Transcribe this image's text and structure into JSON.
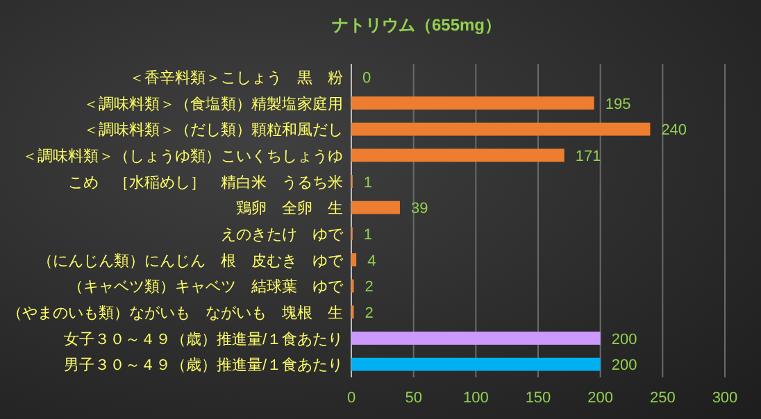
{
  "chart_data": {
    "type": "bar",
    "orientation": "horizontal",
    "title": "ナトリウム（655mg）",
    "categories": [
      "＜香辛料類＞こしょう　黒　粉",
      "＜調味料類＞（食塩類）精製塩家庭用",
      "＜調味料類＞（だし類）顆粒和風だし",
      "＜調味料類＞（しょうゆ類）こいくちしょうゆ",
      "こめ　［水稲めし］　精白米　うるち米",
      "鶏卵　全卵　生",
      "えのきたけ　ゆで",
      "（にんじん類）にんじん　根　皮むき　ゆで",
      "（キャベツ類）キャベツ　結球葉　ゆで",
      "（やまのいも類）ながいも　ながいも　塊根　生",
      "女子３０～４９（歳）推進量/１食あたり",
      "男子３０～４９（歳）推進量/１食あたり"
    ],
    "values": [
      0,
      195,
      240,
      171,
      1,
      39,
      1,
      4,
      2,
      2,
      200,
      200
    ],
    "colors": [
      "#ed7d31",
      "#ed7d31",
      "#ed7d31",
      "#ed7d31",
      "#ed7d31",
      "#ed7d31",
      "#ed7d31",
      "#ed7d31",
      "#ed7d31",
      "#ed7d31",
      "#cc99ff",
      "#00b0f0"
    ],
    "xlim": [
      0,
      300
    ],
    "xticks": [
      0,
      50,
      100,
      150,
      200,
      250,
      300
    ],
    "grid": "x",
    "data_labels": true
  }
}
